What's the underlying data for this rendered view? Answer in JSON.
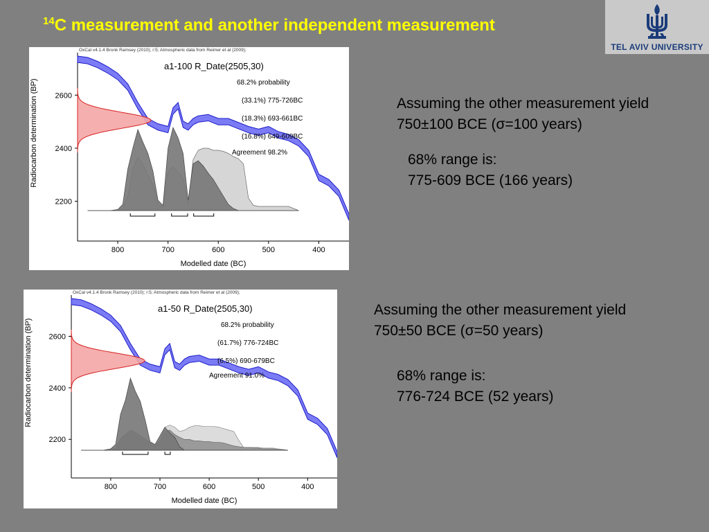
{
  "title": {
    "super": "14",
    "main": "C measurement and  another independent measurement"
  },
  "logo": {
    "text": "TEL AVIV UNIVERSITY",
    "color": "#1a3b7a"
  },
  "notes": [
    {
      "line1": "Assuming the other measurement yield",
      "line2": "750±100 BCE     (σ=100 years)",
      "range_label": "68% range is:",
      "range_value": "775-609  BCE (166 years)"
    },
    {
      "line1": "Assuming the other measurement yield",
      "line2": "750±50 BCE     (σ=50 years)",
      "range_label": "68% range is:",
      "range_value": "776-724  BCE (52 years)"
    }
  ],
  "chart_data": [
    {
      "type": "area",
      "header": "OxCal v4.1.4 Bronk Ramsey (2010); r:5; Atmospheric data from Reimer et al (2009);",
      "title": "a1-100 R_Date(2505,30)",
      "probability_label": "68.2% probability",
      "ranges": [
        "(33.1%) 775-726BC",
        "(18.3%) 693-661BC",
        "(16.8%) 649-609BC"
      ],
      "range_intervals": [
        [
          775,
          726
        ],
        [
          693,
          661
        ],
        [
          649,
          609
        ]
      ],
      "agreement": "Agreement 98.2%",
      "xlabel": "Modelled date (BC)",
      "ylabel": "Radiocarbon determination (BP)",
      "xlim": [
        880,
        340
      ],
      "ylim": [
        2050,
        2760
      ],
      "x_ticks": [
        800,
        700,
        600,
        500,
        400
      ],
      "y_ticks": [
        2200,
        2400,
        2600
      ],
      "radiocarbon_date": {
        "mean": 2505,
        "sigma": 30
      },
      "calibration_curve": {
        "x": [
          880,
          860,
          840,
          820,
          800,
          780,
          760,
          740,
          720,
          700,
          690,
          680,
          670,
          660,
          650,
          640,
          620,
          600,
          580,
          560,
          540,
          520,
          500,
          480,
          460,
          440,
          420,
          400,
          380,
          360,
          340
        ],
        "y": [
          2735,
          2730,
          2715,
          2695,
          2670,
          2630,
          2560,
          2500,
          2480,
          2470,
          2540,
          2560,
          2490,
          2480,
          2500,
          2510,
          2515,
          2500,
          2500,
          2485,
          2470,
          2460,
          2470,
          2450,
          2440,
          2420,
          2380,
          2290,
          2270,
          2230,
          2140
        ],
        "band": 12
      },
      "posterior": {
        "x": [
          860,
          845,
          830,
          815,
          800,
          790,
          780,
          770,
          760,
          750,
          740,
          730,
          720,
          710,
          700,
          690,
          680,
          670,
          660,
          650,
          640,
          630,
          620,
          610,
          600,
          590,
          580,
          570,
          560,
          550,
          540,
          530,
          520,
          510,
          500,
          490,
          480,
          470,
          460,
          450,
          440
        ],
        "likelihood": [
          0,
          0,
          0,
          0,
          0.01,
          0.06,
          0.4,
          0.6,
          0.78,
          0.66,
          0.55,
          0.38,
          0.1,
          0.05,
          0.6,
          0.8,
          0.7,
          0.55,
          0.1,
          0.45,
          0.48,
          0.43,
          0.36,
          0.3,
          0.22,
          0.14,
          0.06,
          0.02,
          0,
          0,
          0,
          0,
          0,
          0,
          0,
          0,
          0,
          0,
          0,
          0,
          0
        ],
        "prior": [
          0,
          0,
          0,
          0,
          0,
          0.02,
          0.14,
          0.4,
          0.52,
          0.44,
          0.34,
          0.25,
          0.06,
          0.03,
          0.37,
          0.42,
          0.37,
          0.3,
          0.06,
          0.49,
          0.58,
          0.6,
          0.6,
          0.58,
          0.58,
          0.57,
          0.55,
          0.52,
          0.5,
          0.45,
          0.12,
          0.05,
          0.04,
          0.04,
          0.04,
          0.04,
          0.04,
          0.04,
          0.04,
          0.02,
          0
        ]
      }
    },
    {
      "type": "area",
      "header": "OxCal v4.1.4 Bronk Ramsey (2010); r:5; Atmospheric data from Reimer et al (2009);",
      "title": "a1-50 R_Date(2505,30)",
      "probability_label": "68.2% probability",
      "ranges": [
        "(61.7%) 776-724BC",
        "(6.5%) 690-679BC"
      ],
      "range_intervals": [
        [
          776,
          724
        ],
        [
          690,
          679
        ]
      ],
      "agreement": "Agreement 91.0%",
      "xlabel": "Modelled date (BC)",
      "ylabel": "Radiocarbon determination (BP)",
      "xlim": [
        880,
        340
      ],
      "ylim": [
        2050,
        2760
      ],
      "x_ticks": [
        800,
        700,
        600,
        500,
        400
      ],
      "y_ticks": [
        2200,
        2400,
        2600
      ],
      "radiocarbon_date": {
        "mean": 2505,
        "sigma": 30
      },
      "calibration_curve": {
        "x": [
          880,
          860,
          840,
          820,
          800,
          780,
          760,
          740,
          720,
          700,
          690,
          680,
          670,
          660,
          650,
          640,
          620,
          600,
          580,
          560,
          540,
          520,
          500,
          480,
          460,
          440,
          420,
          400,
          380,
          360,
          340
        ],
        "y": [
          2735,
          2730,
          2715,
          2695,
          2670,
          2630,
          2560,
          2500,
          2480,
          2470,
          2540,
          2560,
          2490,
          2480,
          2500,
          2510,
          2515,
          2500,
          2500,
          2485,
          2470,
          2460,
          2470,
          2450,
          2440,
          2420,
          2380,
          2290,
          2270,
          2230,
          2140
        ],
        "band": 12
      },
      "posterior": {
        "x": [
          860,
          845,
          830,
          815,
          800,
          790,
          780,
          770,
          760,
          750,
          740,
          730,
          720,
          710,
          700,
          690,
          680,
          670,
          660,
          650,
          640,
          630,
          620,
          610,
          600,
          590,
          580,
          570,
          560,
          550,
          540,
          530,
          520,
          510,
          500,
          490,
          480,
          470,
          460,
          450,
          440
        ],
        "likelihood": [
          0,
          0,
          0,
          0,
          0.02,
          0.08,
          0.5,
          0.7,
          1.0,
          0.82,
          0.68,
          0.42,
          0.12,
          0.08,
          0.2,
          0.32,
          0.24,
          0.18,
          0.05,
          0,
          0,
          0,
          0,
          0,
          0,
          0,
          0,
          0,
          0,
          0,
          0,
          0,
          0,
          0,
          0,
          0,
          0,
          0,
          0,
          0,
          0
        ],
        "prior": [
          0,
          0,
          0,
          0,
          0,
          0.03,
          0.16,
          0.22,
          0.28,
          0.25,
          0.2,
          0.16,
          0.1,
          0.06,
          0.12,
          0.26,
          0.28,
          0.22,
          0.18,
          0.15,
          0.15,
          0.13,
          0.13,
          0.12,
          0.12,
          0.11,
          0.11,
          0.1,
          0.08,
          0.06,
          0.05,
          0.04,
          0.04,
          0.03,
          0.03,
          0.02,
          0.02,
          0.02,
          0.01,
          0.01,
          0
        ],
        "prior_full": [
          0,
          0,
          0,
          0,
          0,
          0.03,
          0.16,
          0.22,
          0.28,
          0.25,
          0.2,
          0.16,
          0.1,
          0.06,
          0.14,
          0.32,
          0.35,
          0.32,
          0.26,
          0.28,
          0.32,
          0.34,
          0.34,
          0.33,
          0.33,
          0.33,
          0.32,
          0.3,
          0.28,
          0.26,
          0.14,
          0.04,
          0.04,
          0.04,
          0.04,
          0.03,
          0.03,
          0.03,
          0.02,
          0.01,
          0
        ]
      }
    }
  ]
}
